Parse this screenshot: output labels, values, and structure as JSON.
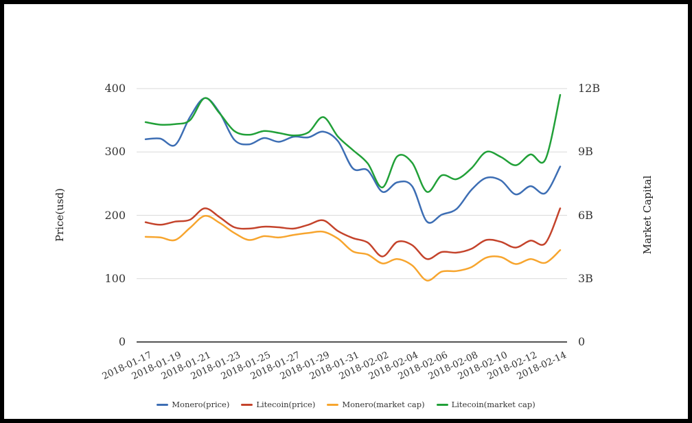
{
  "chart_data": {
    "type": "line",
    "smooth": true,
    "grid": true,
    "legend_position": "bottom",
    "x": [
      "2018-01-17",
      "2018-01-18",
      "2018-01-19",
      "2018-01-20",
      "2018-01-21",
      "2018-01-22",
      "2018-01-23",
      "2018-01-24",
      "2018-01-25",
      "2018-01-26",
      "2018-01-27",
      "2018-01-28",
      "2018-01-29",
      "2018-01-30",
      "2018-01-31",
      "2018-02-01",
      "2018-02-02",
      "2018-02-03",
      "2018-02-04",
      "2018-02-05",
      "2018-02-06",
      "2018-02-07",
      "2018-02-08",
      "2018-02-09",
      "2018-02-10",
      "2018-02-11",
      "2018-02-12",
      "2018-02-13",
      "2018-02-14"
    ],
    "x_tick_labels": [
      "2018-01-17",
      "2018-01-19",
      "2018-01-21",
      "2018-01-23",
      "2018-01-25",
      "2018-01-27",
      "2018-01-29",
      "2018-01-31",
      "2018-02-02",
      "2018-02-04",
      "2018-02-06",
      "2018-02-08",
      "2018-02-10",
      "2018-02-12",
      "2018-02-14"
    ],
    "left_axis": {
      "title": "Price(usd)",
      "ticks": [
        "400",
        "300",
        "200",
        "100",
        "0"
      ],
      "range": [
        0,
        400
      ]
    },
    "right_axis": {
      "title": "Market Capital",
      "ticks": [
        "12B",
        "9B",
        "6B",
        "3B",
        "0"
      ],
      "range_billions": [
        0,
        12
      ]
    },
    "series": [
      {
        "name": "Monero(price)",
        "axis": "left",
        "color": "#3d6eb4",
        "values": [
          320,
          321,
          311,
          355,
          385,
          362,
          319,
          312,
          322,
          316,
          324,
          323,
          332,
          317,
          274,
          271,
          237,
          252,
          246,
          190,
          201,
          210,
          240,
          259,
          255,
          233,
          246,
          235,
          277
        ]
      },
      {
        "name": "Litecoin(price)",
        "axis": "left",
        "color": "#c4432b",
        "values": [
          189,
          185,
          190,
          193,
          211,
          197,
          181,
          179,
          182,
          181,
          179,
          185,
          192,
          175,
          164,
          157,
          135,
          158,
          153,
          131,
          142,
          141,
          147,
          161,
          158,
          149,
          160,
          156,
          211
        ]
      },
      {
        "name": "Monero(market cap)",
        "axis": "right",
        "color": "#f7a52e",
        "values_billions": [
          4.98,
          4.95,
          4.83,
          5.4,
          5.97,
          5.64,
          5.16,
          4.83,
          5.01,
          4.95,
          5.07,
          5.16,
          5.22,
          4.89,
          4.29,
          4.14,
          3.72,
          3.93,
          3.63,
          2.91,
          3.33,
          3.36,
          3.54,
          3.99,
          4.02,
          3.69,
          3.93,
          3.75,
          4.35
        ]
      },
      {
        "name": "Litecoin(market cap)",
        "axis": "right",
        "color": "#21a038",
        "values_billions": [
          10.41,
          10.29,
          10.32,
          10.5,
          11.55,
          10.83,
          9.99,
          9.81,
          9.99,
          9.9,
          9.78,
          9.93,
          10.65,
          9.72,
          9.09,
          8.46,
          7.32,
          8.79,
          8.49,
          7.11,
          7.89,
          7.71,
          8.22,
          9.0,
          8.76,
          8.37,
          8.88,
          8.64,
          11.7
        ]
      }
    ],
    "legend": [
      "Monero(price)",
      "Litecoin(price)",
      "Monero(market cap)",
      "Litecoin(market cap)"
    ]
  },
  "colors": {
    "gridline": "#d9d9d9",
    "axis_line": "#1a1a1a",
    "tick_text": "#333333",
    "background": "#ffffff",
    "frame_border": "#000000"
  }
}
